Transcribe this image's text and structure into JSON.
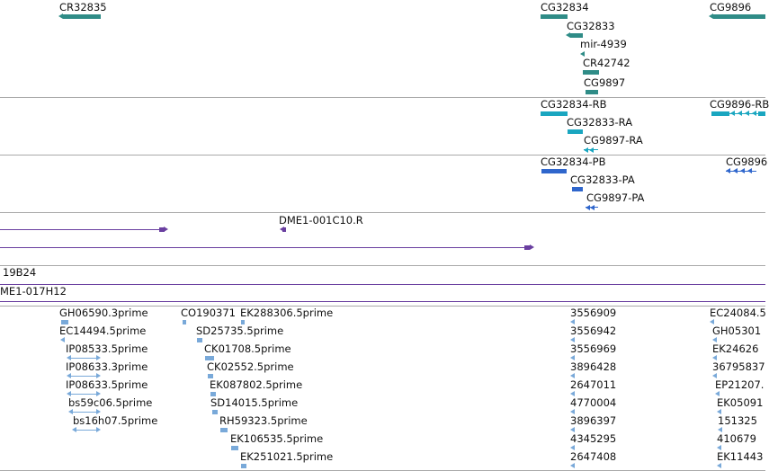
{
  "colors": {
    "gene": "#2f8c87",
    "mrna": "#1aa6c0",
    "protein": "#2f66cc",
    "clone": "#6a3fa0",
    "est": "#79a9d9",
    "divider": "#a9a9a9"
  },
  "gene_track": {
    "labels": [
      "CR32835",
      "CG32834",
      "CG32833",
      "mir-4939",
      "CR42742",
      "CG9897",
      "CG9896"
    ]
  },
  "mrna_track": {
    "labels": [
      "CG32834-RB",
      "CG32833-RA",
      "CG9897-RA",
      "CG9896-RB"
    ]
  },
  "protein_track": {
    "labels": [
      "CG32834-PB",
      "CG32833-PA",
      "CG9897-PA",
      "CG9896"
    ]
  },
  "clone_track": {
    "labels": [
      "DME1-001C10.R"
    ]
  },
  "bac_track": {
    "labels": [
      "19B24",
      "ME1-017H12"
    ]
  },
  "est_track": {
    "col1": [
      "GH06590.3prime",
      "EC14494.5prime",
      "IP08533.5prime",
      "IP08633.3prime",
      "IP08633.5prime",
      "bs59c06.5prime",
      "bs16h07.5prime"
    ],
    "col2_top": [
      "CO190371",
      "EK288306.5prime"
    ],
    "col2": [
      "SD25735.5prime",
      "CK01708.5prime",
      "CK02552.5prime",
      "EK087802.5prime",
      "SD14015.5prime",
      "RH59323.5prime",
      "EK106535.5prime",
      "EK251021.5prime"
    ],
    "col3": [
      "3556909",
      "3556942",
      "3556969",
      "3896428",
      "2647011",
      "4770004",
      "3896397",
      "4345295",
      "2647408"
    ],
    "col4": [
      "EC24084.5",
      "GH05301",
      "EK24626",
      "36795837",
      "EP21207.",
      "EK05091",
      "151325",
      "410679",
      "EK11443"
    ]
  }
}
